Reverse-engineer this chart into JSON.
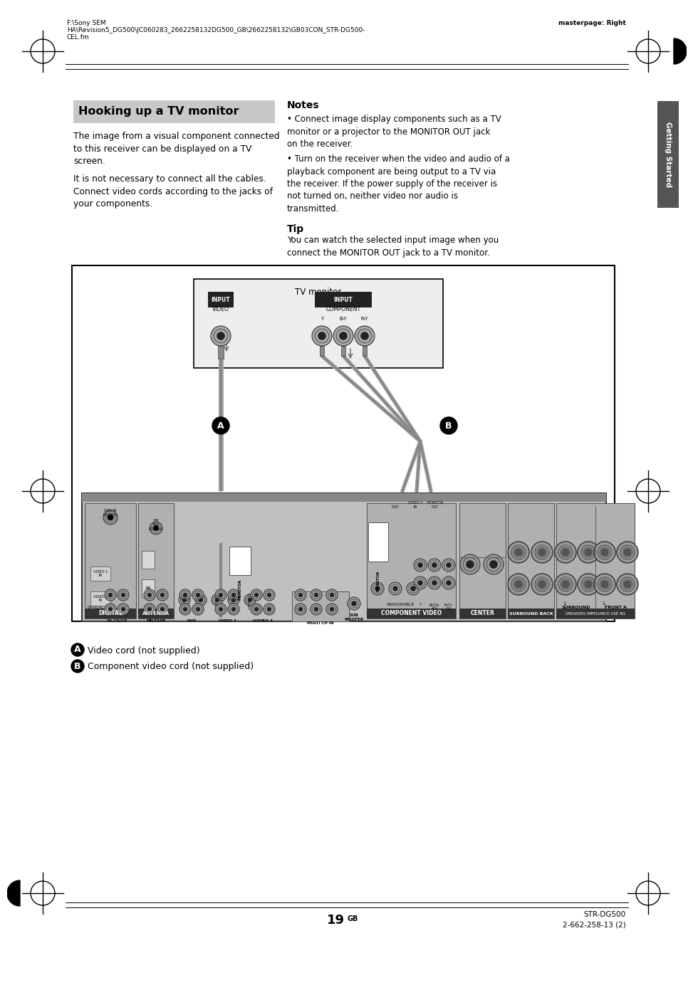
{
  "page_bg": "#ffffff",
  "header_left_line1": "F:\\Sony SEM",
  "header_left_line2": "HA\\Revision5_DG500\\JC060283_2662258132DG500_GB\\2662258132\\GB03CON_STR-DG500-",
  "header_left_line3": "CEL.fm",
  "header_right": "masterpage: Right",
  "title_text": "Hooking up a TV monitor",
  "title_bg": "#c8c8c8",
  "body1": "The image from a visual component connected\nto this receiver can be displayed on a TV\nscreen.",
  "body2": "It is not necessary to connect all the cables.\nConnect video cords according to the jacks of\nyour components.",
  "notes_title": "Notes",
  "note1": "Connect image display components such as a TV\nmonitor or a projector to the MONITOR OUT jack\non the receiver.",
  "note2": "Turn on the receiver when the video and audio of a\nplayback component are being output to a TV via\nthe receiver. If the power supply of the receiver is\nnot turned on, neither video nor audio is\ntransmitted.",
  "tip_title": "Tip",
  "tip_body": "You can watch the selected input image when you\nconnect the MONITOR OUT jack to a TV monitor.",
  "tab_text": "Getting Started",
  "tab_bg": "#555555",
  "label_a": "Video cord (not supplied)",
  "label_b": "Component video cord (not supplied)",
  "page_num": "19",
  "page_suffix": "GB",
  "footer_right": "STR-DG500\n2-662-258-13 (2)",
  "tv_monitor_label": "TV monitor",
  "input_video_label": "INPUT\nVIDEO",
  "input_component_label": "INPUT\nCOMPONENT\nY     B-Y   R-Y",
  "digital_label": "DIGITAL",
  "antenna_label": "ANTENNA",
  "component_video_label": "COMPONENT VIDEO",
  "assignable_label": "ASSIGNABLE",
  "monitor_label": "MONITOR",
  "center_label": "CENTER",
  "surround_back_label": "SURROUND BACK",
  "surround_label": "SURROUND",
  "front_a_label": "FRONT A",
  "speakers_label": "SPEAKERS IMPEDANCE USE 8Ω",
  "sacd_label": "SA·CD/CD",
  "mdtape_label": "MD/TAPE",
  "dvd_label": "DVD",
  "video2_label": "VIDEO 2",
  "video1_label": "VIDEO 1",
  "multich_label": "MULTI CH IN",
  "subwoofer_label": "SUB\nWOOFER",
  "rec_bg": "#b8b8b8",
  "rec_dark": "#888888",
  "rec_darker": "#606060"
}
